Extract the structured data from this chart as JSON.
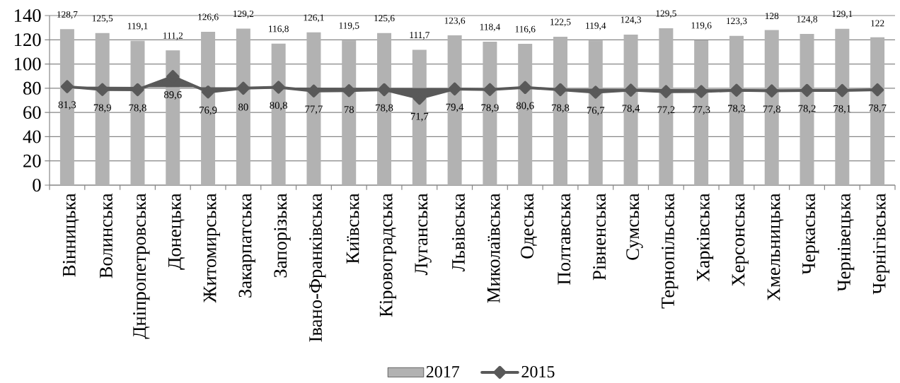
{
  "chart_data": {
    "type": "bar",
    "categories": [
      "Вінницька",
      "Волинська",
      "Дніпропетровська",
      "Донецька",
      "Житомирська",
      "Закарпатська",
      "Запорізька",
      "Івано-Франківська",
      "Київська",
      "Кіровоградська",
      "Луганська",
      "Львівська",
      "Миколаївська",
      "Одеська",
      "Полтавська",
      "Рівненська",
      "Сумська",
      "Тернопільська",
      "Харківська",
      "Херсонська",
      "Хмельницька",
      "Черкаська",
      "Чернівецька",
      "Чернігівська"
    ],
    "series": [
      {
        "name": "2017",
        "color": "#b2b2b2",
        "values": [
          128.7,
          125.5,
          119.1,
          111.2,
          126.6,
          129.2,
          116.8,
          126.1,
          119.5,
          125.6,
          111.7,
          123.6,
          118.4,
          116.6,
          122.5,
          119.4,
          124.3,
          129.5,
          119.6,
          123.3,
          128,
          124.8,
          129.1,
          122
        ],
        "value_labels": [
          "128,7",
          "125,5",
          "119,1",
          "111,2",
          "126,6",
          "129,2",
          "116,8",
          "126,1",
          "119,5",
          "125,6",
          "111,7",
          "123,6",
          "118,4",
          "116,6",
          "122,5",
          "119,4",
          "124,3",
          "129,5",
          "119,6",
          "123,3",
          "128",
          "124,8",
          "129,1",
          "122"
        ]
      },
      {
        "name": "2015",
        "type": "line",
        "color": "#595959",
        "values": [
          81.3,
          78.9,
          78.8,
          89.6,
          76.9,
          80,
          80.8,
          77.7,
          78,
          78.8,
          71.7,
          79.4,
          78.9,
          80.6,
          78.8,
          76.7,
          78.4,
          77.2,
          77.3,
          78.3,
          77.8,
          78.2,
          78.1,
          78.7
        ],
        "value_labels": [
          "81,3",
          "78,9",
          "78,8",
          "89,6",
          "76,9",
          "80",
          "80,8",
          "77,7",
          "78",
          "78,8",
          "71,7",
          "79,4",
          "78,9",
          "80,6",
          "78,8",
          "76,7",
          "78,4",
          "77,2",
          "77,3",
          "78,3",
          "77,8",
          "78,2",
          "78,1",
          "78,7"
        ]
      }
    ],
    "ylim": [
      0,
      140
    ],
    "yticks": [
      0,
      20,
      40,
      60,
      80,
      100,
      120,
      140
    ],
    "grid": "y",
    "legend": "bottom",
    "marker": "diamond"
  }
}
